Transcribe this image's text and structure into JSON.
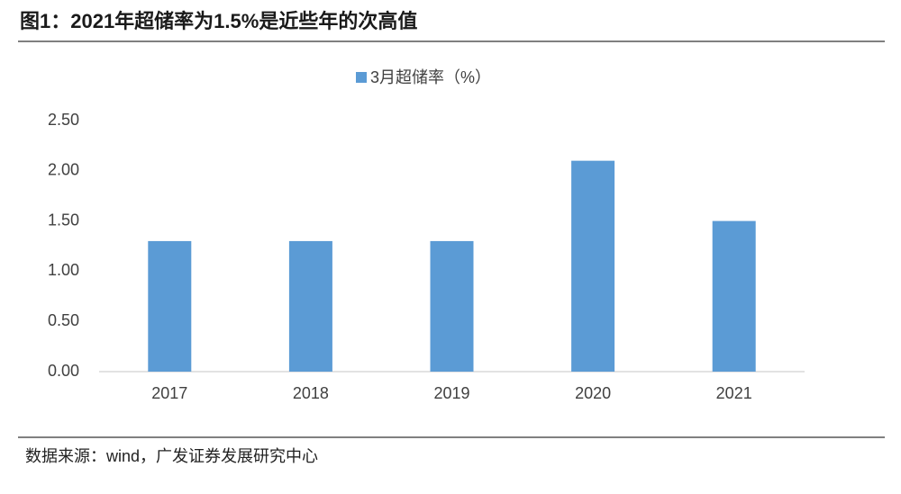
{
  "header": {
    "title": "图1：2021年超储率为1.5%是近些年的次高值"
  },
  "chart_data": {
    "type": "bar",
    "categories": [
      "2017",
      "2018",
      "2019",
      "2020",
      "2021"
    ],
    "series": [
      {
        "name": "3月超储率（%）",
        "color": "#5b9bd5",
        "values": [
          1.3,
          1.3,
          1.3,
          2.1,
          1.5
        ]
      }
    ],
    "ylim": [
      0,
      2.5
    ],
    "yticks": [
      {
        "value": 0,
        "label": "0.00"
      },
      {
        "value": 0.5,
        "label": "0.50"
      },
      {
        "value": 1,
        "label": "1.00"
      },
      {
        "value": 1.5,
        "label": "1.50"
      },
      {
        "value": 2,
        "label": "2.00"
      },
      {
        "value": 2.5,
        "label": "2.50"
      }
    ],
    "grid": false,
    "legend": "top"
  },
  "footer": {
    "source": "数据来源：wind，广发证券发展研究中心"
  }
}
